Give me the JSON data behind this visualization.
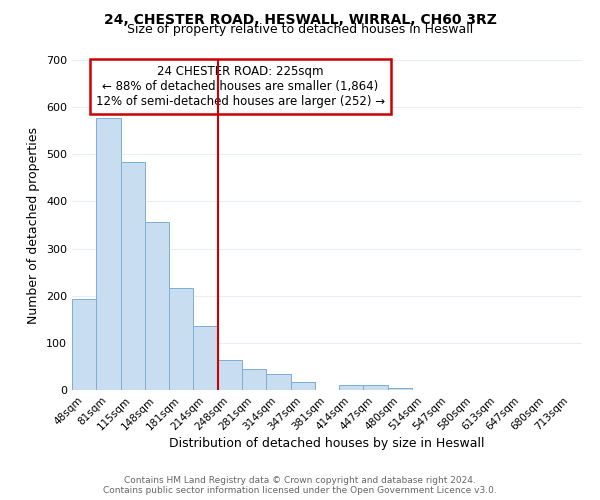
{
  "title": "24, CHESTER ROAD, HESWALL, WIRRAL, CH60 3RZ",
  "subtitle": "Size of property relative to detached houses in Heswall",
  "xlabel": "Distribution of detached houses by size in Heswall",
  "ylabel": "Number of detached properties",
  "bar_labels": [
    "48sqm",
    "81sqm",
    "115sqm",
    "148sqm",
    "181sqm",
    "214sqm",
    "248sqm",
    "281sqm",
    "314sqm",
    "347sqm",
    "381sqm",
    "414sqm",
    "447sqm",
    "480sqm",
    "514sqm",
    "547sqm",
    "580sqm",
    "613sqm",
    "647sqm",
    "680sqm",
    "713sqm"
  ],
  "bar_values": [
    193,
    578,
    484,
    357,
    217,
    135,
    64,
    44,
    35,
    17,
    0,
    10,
    11,
    5,
    0,
    0,
    0,
    0,
    0,
    0,
    0
  ],
  "bar_color": "#c9ddf0",
  "bar_edge_color": "#7bafd4",
  "vline_x": 5.5,
  "vline_color": "#cc0000",
  "ylim": [
    0,
    700
  ],
  "yticks": [
    0,
    100,
    200,
    300,
    400,
    500,
    600,
    700
  ],
  "annotation_title": "24 CHESTER ROAD: 225sqm",
  "annotation_line1": "← 88% of detached houses are smaller (1,864)",
  "annotation_line2": "12% of semi-detached houses are larger (252) →",
  "annotation_box_color": "#ffffff",
  "annotation_box_edge": "#cc0000",
  "footer_line1": "Contains HM Land Registry data © Crown copyright and database right 2024.",
  "footer_line2": "Contains public sector information licensed under the Open Government Licence v3.0.",
  "background_color": "#ffffff",
  "grid_color": "#e8eef4"
}
